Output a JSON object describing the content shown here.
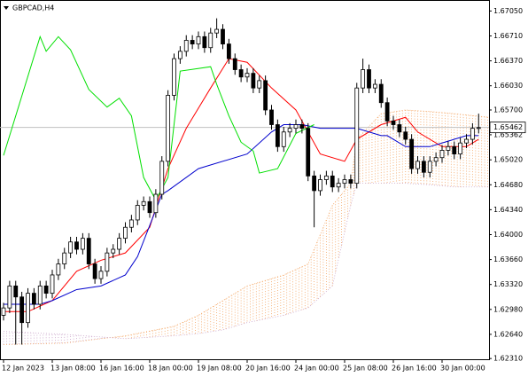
{
  "chart_data": {
    "type": "candlestick",
    "title": "GBPCAD,H4",
    "categories": [
      "12 Jan 2023",
      null,
      null,
      null,
      null,
      null,
      null,
      null,
      "13 Jan 08:00",
      null,
      null,
      null,
      null,
      null,
      null,
      null,
      "16 Jan 16:00",
      null,
      null,
      null,
      null,
      null,
      null,
      null,
      "18 Jan 00:00",
      null,
      null,
      null,
      null,
      null,
      null,
      null,
      "19 Jan 08:00",
      null,
      null,
      null,
      null,
      null,
      null,
      null,
      "20 Jan 16:00",
      null,
      null,
      null,
      null,
      null,
      null,
      null,
      "24 Jan 00:00",
      null,
      null,
      null,
      null,
      null,
      null,
      null,
      "25 Jan 08:00",
      null,
      null,
      null,
      null,
      null,
      null,
      null,
      "26 Jan 16:00",
      null,
      null,
      null,
      null,
      null,
      null,
      null,
      "30 Jan 00:00",
      null,
      null,
      null,
      null,
      null,
      null
    ],
    "open": [
      1.629,
      1.63,
      1.633,
      1.6315,
      1.628,
      1.632,
      1.6305,
      1.633,
      1.632,
      1.6345,
      1.636,
      1.6375,
      1.639,
      1.638,
      1.6395,
      1.636,
      1.634,
      1.635,
      1.6375,
      1.638,
      1.6395,
      1.641,
      1.642,
      1.644,
      1.6445,
      1.643,
      1.6455,
      1.65,
      1.659,
      1.664,
      1.665,
      1.6665,
      1.666,
      1.667,
      1.6655,
      1.6675,
      1.668,
      1.666,
      1.664,
      1.6625,
      1.6615,
      1.662,
      1.66,
      1.661,
      1.657,
      1.655,
      1.652,
      1.654,
      1.6545,
      1.655,
      1.6545,
      1.648,
      1.646,
      1.6475,
      1.648,
      1.6465,
      1.647,
      1.6475,
      1.647,
      1.66,
      1.6625,
      1.66,
      1.6605,
      1.658,
      1.6555,
      1.655,
      1.654,
      1.653,
      1.649,
      1.65,
      1.6485,
      1.65,
      1.6505,
      1.6515,
      1.652,
      1.651,
      1.6525,
      1.653,
      1.6545
    ],
    "high": [
      1.6307,
      1.6337,
      1.6337,
      1.6322,
      1.6327,
      1.6327,
      1.6337,
      1.6337,
      1.6352,
      1.6367,
      1.6382,
      1.6397,
      1.6397,
      1.6402,
      1.6402,
      1.6367,
      1.6357,
      1.6382,
      1.6387,
      1.6402,
      1.6417,
      1.6427,
      1.6447,
      1.6452,
      1.6452,
      1.6462,
      1.6507,
      1.6597,
      1.6647,
      1.6657,
      1.6672,
      1.6672,
      1.6677,
      1.6677,
      1.6682,
      1.6695,
      1.6687,
      1.6667,
      1.6647,
      1.6632,
      1.6627,
      1.6627,
      1.6617,
      1.6617,
      1.6577,
      1.6557,
      1.6547,
      1.6552,
      1.6557,
      1.6557,
      1.6552,
      1.6487,
      1.6482,
      1.6487,
      1.6487,
      1.6477,
      1.6482,
      1.6482,
      1.6607,
      1.664,
      1.6632,
      1.6612,
      1.6612,
      1.6587,
      1.6562,
      1.6557,
      1.6547,
      1.6537,
      1.6507,
      1.6507,
      1.6507,
      1.6512,
      1.6522,
      1.6527,
      1.6527,
      1.6532,
      1.6537,
      1.6552,
      1.6565
    ],
    "low": [
      1.6283,
      1.6293,
      1.625,
      1.625,
      1.6273,
      1.6298,
      1.6298,
      1.6313,
      1.6313,
      1.6338,
      1.6353,
      1.6368,
      1.6373,
      1.6373,
      1.6353,
      1.6333,
      1.6333,
      1.6343,
      1.6368,
      1.6373,
      1.6388,
      1.6403,
      1.6413,
      1.6433,
      1.6423,
      1.6423,
      1.6448,
      1.6493,
      1.6583,
      1.6633,
      1.6643,
      1.6653,
      1.6653,
      1.6648,
      1.6648,
      1.6668,
      1.6653,
      1.6633,
      1.6618,
      1.6608,
      1.6608,
      1.6593,
      1.6593,
      1.6563,
      1.6543,
      1.6513,
      1.6513,
      1.6533,
      1.6538,
      1.6538,
      1.6473,
      1.641,
      1.6453,
      1.6468,
      1.6458,
      1.6458,
      1.6463,
      1.6463,
      1.6463,
      1.6593,
      1.6593,
      1.6593,
      1.6573,
      1.6548,
      1.6543,
      1.6533,
      1.6523,
      1.6483,
      1.6483,
      1.6478,
      1.6478,
      1.6493,
      1.6498,
      1.6508,
      1.6503,
      1.6503,
      1.6518,
      1.6523,
      1.6538
    ],
    "close": [
      1.63,
      1.633,
      1.6315,
      1.628,
      1.632,
      1.6305,
      1.633,
      1.632,
      1.6345,
      1.636,
      1.6375,
      1.639,
      1.638,
      1.6395,
      1.636,
      1.634,
      1.635,
      1.6375,
      1.638,
      1.6395,
      1.641,
      1.642,
      1.644,
      1.6445,
      1.643,
      1.6455,
      1.65,
      1.659,
      1.664,
      1.665,
      1.6665,
      1.666,
      1.667,
      1.6655,
      1.6675,
      1.668,
      1.666,
      1.664,
      1.6625,
      1.6615,
      1.662,
      1.66,
      1.661,
      1.657,
      1.655,
      1.652,
      1.654,
      1.6545,
      1.655,
      1.6545,
      1.648,
      1.646,
      1.6475,
      1.648,
      1.6465,
      1.647,
      1.6475,
      1.647,
      1.66,
      1.6625,
      1.66,
      1.6605,
      1.658,
      1.6555,
      1.655,
      1.654,
      1.653,
      1.649,
      1.65,
      1.6485,
      1.65,
      1.6505,
      1.6515,
      1.652,
      1.651,
      1.6525,
      1.653,
      1.6545,
      1.6546
    ],
    "up_color": "#ffffff",
    "down_color": "#000000",
    "lines": [
      {
        "color": "#ff0000",
        "x": [
          0,
          4,
          8,
          12,
          16,
          20,
          24,
          27,
          30,
          34,
          37,
          40,
          44,
          48,
          52,
          56,
          58,
          62,
          66,
          68,
          72,
          76,
          78
        ],
        "values": [
          1.6295,
          1.6295,
          1.631,
          1.635,
          1.6365,
          1.6375,
          1.641,
          1.649,
          1.6545,
          1.66,
          1.664,
          1.6635,
          1.66,
          1.657,
          1.651,
          1.65,
          1.653,
          1.655,
          1.656,
          1.654,
          1.652,
          1.652,
          1.653
        ]
      },
      {
        "color": "#0000cd",
        "x": [
          0,
          6,
          8,
          12,
          16,
          20,
          22,
          26,
          27,
          32,
          40,
          44,
          46,
          49,
          52,
          58,
          62,
          63,
          66,
          70,
          74,
          76,
          78
        ],
        "values": [
          1.6305,
          1.6305,
          1.631,
          1.6325,
          1.633,
          1.6345,
          1.637,
          1.6455,
          1.646,
          1.649,
          1.651,
          1.654,
          1.655,
          1.655,
          1.6545,
          1.6545,
          1.6535,
          1.6535,
          1.652,
          1.652,
          1.653,
          1.6535,
          1.6535
        ]
      },
      {
        "color": "#00e000",
        "x": [
          0,
          6,
          7,
          9,
          11,
          14,
          17,
          19,
          21,
          23,
          25,
          27,
          29,
          34,
          35,
          37,
          39,
          41,
          42,
          45,
          48,
          51
        ],
        "values": [
          1.6508,
          1.667,
          1.665,
          1.667,
          1.6652,
          1.6598,
          1.6574,
          1.6586,
          1.6562,
          1.6478,
          1.6447,
          1.6478,
          1.6623,
          1.6629,
          1.6605,
          1.6562,
          1.6526,
          1.6514,
          1.6484,
          1.649,
          1.6538,
          1.655
        ]
      }
    ],
    "cloud": {
      "x": [
        0,
        10,
        20,
        28,
        32,
        36,
        40,
        46,
        50,
        54,
        57,
        58,
        62,
        66,
        70,
        74,
        80
      ],
      "span_a": [
        1.625,
        1.6252,
        1.6262,
        1.6275,
        1.629,
        1.631,
        1.633,
        1.6345,
        1.636,
        1.644,
        1.647,
        1.653,
        1.6565,
        1.657,
        1.6568,
        1.6565,
        1.656
      ],
      "span_b": [
        1.6268,
        1.6264,
        1.6258,
        1.6262,
        1.6265,
        1.627,
        1.628,
        1.629,
        1.63,
        1.633,
        1.644,
        1.647,
        1.647,
        1.647,
        1.6468,
        1.6465,
        1.6465
      ],
      "up_color": "#f4a460",
      "down_color": "#c8a2c8"
    },
    "last_price": {
      "value": 1.65462,
      "label": "1.65462"
    },
    "ylim": [
      1.623,
      1.672
    ],
    "yticks": [
      {
        "value": 1.6705,
        "label": "1.67050"
      },
      {
        "value": 1.6671,
        "label": "1.66710"
      },
      {
        "value": 1.6637,
        "label": "1.66370"
      },
      {
        "value": 1.6603,
        "label": "1.66030"
      },
      {
        "value": 1.657,
        "label": "1.65700"
      },
      {
        "value": 1.65362,
        "label": "1.65362"
      },
      {
        "value": 1.6502,
        "label": "1.65020"
      },
      {
        "value": 1.6468,
        "label": "1.64680"
      },
      {
        "value": 1.6434,
        "label": "1.64340"
      },
      {
        "value": 1.64,
        "label": "1.64000"
      },
      {
        "value": 1.6366,
        "label": "1.63660"
      },
      {
        "value": 1.6332,
        "label": "1.63320"
      },
      {
        "value": 1.6298,
        "label": "1.62980"
      },
      {
        "value": 1.6264,
        "label": "1.62640"
      },
      {
        "value": 1.6231,
        "label": "1.62310"
      }
    ]
  }
}
